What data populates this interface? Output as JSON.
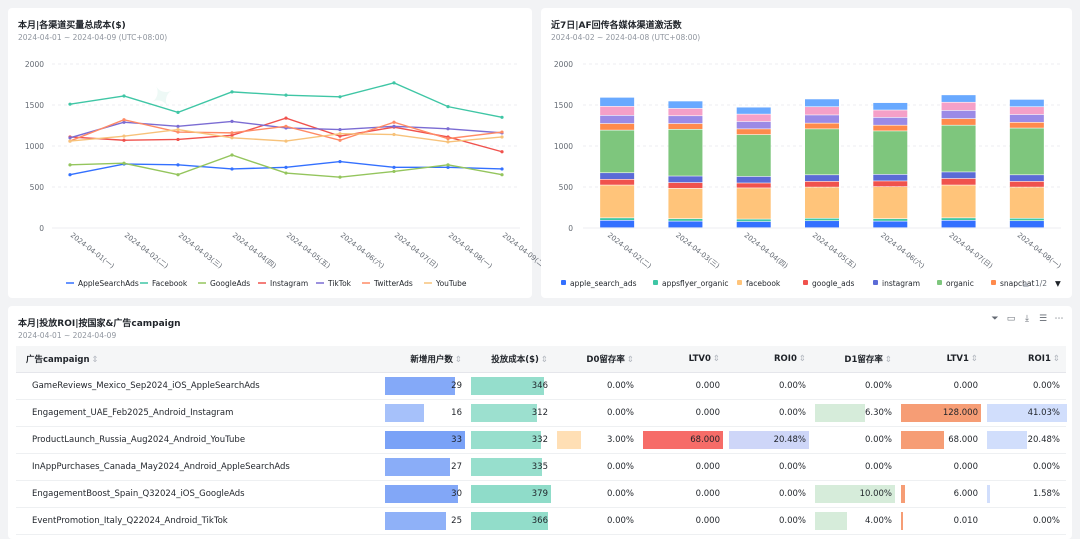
{
  "line_card": {
    "title": "本月|各渠道买量总成本($)",
    "subtitle": "2024-04-01 ~ 2024-04-09 (UTC+08:00)"
  },
  "bar_card": {
    "title": "近7日|AF回传各媒体渠道激活数",
    "subtitle": "2024-04-02 ~ 2024-04-08 (UTC+08:00)",
    "legend_page": "1/2"
  },
  "table_card": {
    "title": "本月|投放ROI|按国家&广告campaign",
    "subtitle": "2024-04-01 ~ 2024-04-09"
  },
  "chart_data": [
    {
      "type": "line",
      "title": "本月|各渠道买量总成本($)",
      "categories": [
        "2024-04-01(一)",
        "2024-04-02(二)",
        "2024-04-03(三)",
        "2024-04-04(四)",
        "2024-04-05(五)",
        "2024-04-06(六)",
        "2024-04-07(日)",
        "2024-04-08(一)",
        "2024-04-09(二)"
      ],
      "ylim": [
        0,
        2000
      ],
      "yticks": [
        0,
        500,
        1000,
        1500,
        2000
      ],
      "series": [
        {
          "name": "AppleSearchAds",
          "color": "#3370ff",
          "values": [
            650,
            780,
            770,
            720,
            740,
            810,
            740,
            740,
            720
          ]
        },
        {
          "name": "Facebook",
          "color": "#3fc6a5",
          "values": [
            1510,
            1610,
            1410,
            1660,
            1620,
            1600,
            1770,
            1480,
            1350
          ]
        },
        {
          "name": "GoogleAds",
          "color": "#94c55d",
          "values": [
            770,
            790,
            650,
            890,
            670,
            620,
            690,
            770,
            650
          ]
        },
        {
          "name": "Instagram",
          "color": "#f0524d",
          "values": [
            1110,
            1070,
            1080,
            1130,
            1340,
            1120,
            1230,
            1110,
            930
          ]
        },
        {
          "name": "TikTok",
          "color": "#7b6cd3",
          "values": [
            1100,
            1290,
            1240,
            1300,
            1220,
            1200,
            1240,
            1210,
            1160
          ]
        },
        {
          "name": "TwitterAds",
          "color": "#ff8a65",
          "values": [
            1060,
            1320,
            1170,
            1160,
            1240,
            1070,
            1290,
            1090,
            1170
          ]
        },
        {
          "name": "YouTube",
          "color": "#f7c27a",
          "values": [
            1060,
            1120,
            1200,
            1100,
            1060,
            1150,
            1140,
            1050,
            1110
          ]
        }
      ]
    },
    {
      "type": "bar",
      "stacked": true,
      "title": "近7日|AF回传各媒体渠道激活数",
      "categories": [
        "2024-04-02(二)",
        "2024-04-03(三)",
        "2024-04-04(四)",
        "2024-04-05(五)",
        "2024-04-06(六)",
        "2024-04-07(日)",
        "2024-04-08(一)"
      ],
      "ylim": [
        0,
        2000
      ],
      "yticks": [
        0,
        500,
        1000,
        1500,
        2000
      ],
      "series": [
        {
          "name": "apple_search_ads",
          "color": "#3370ff",
          "values": [
            90,
            80,
            75,
            85,
            80,
            90,
            85
          ]
        },
        {
          "name": "appsflyer_organic",
          "color": "#3fc6a5",
          "values": [
            30,
            30,
            30,
            30,
            30,
            30,
            30
          ]
        },
        {
          "name": "facebook",
          "color": "#ffc47a",
          "values": [
            400,
            370,
            380,
            380,
            390,
            400,
            380
          ]
        },
        {
          "name": "google_ads",
          "color": "#f0524d",
          "values": [
            70,
            70,
            60,
            70,
            70,
            80,
            70
          ]
        },
        {
          "name": "instagram",
          "color": "#5b6bd6",
          "values": [
            80,
            80,
            80,
            80,
            80,
            80,
            80
          ]
        },
        {
          "name": "organic",
          "color": "#7ec67d",
          "values": [
            520,
            570,
            510,
            560,
            530,
            570,
            570
          ]
        },
        {
          "name": "snapchat",
          "color": "#ff8a4c",
          "values": [
            80,
            70,
            70,
            70,
            70,
            80,
            70
          ]
        },
        {
          "name": "tiktok",
          "color": "#9b8ae6",
          "values": [
            100,
            95,
            90,
            100,
            95,
            100,
            95
          ]
        },
        {
          "name": "twitter",
          "color": "#f5a0c8",
          "values": [
            110,
            90,
            90,
            100,
            90,
            100,
            95
          ]
        },
        {
          "name": "youtube",
          "color": "#69a9ff",
          "values": [
            110,
            90,
            85,
            95,
            90,
            90,
            90
          ]
        }
      ],
      "legend_visible": [
        "apple_search_ads",
        "appsflyer_organic",
        "facebook",
        "google_ads",
        "instagram",
        "organic",
        "snapchat"
      ]
    },
    {
      "type": "table",
      "title": "本月|投放ROI|按国家&广告campaign",
      "columns": [
        {
          "key": "campaign",
          "label": "广告campaign"
        },
        {
          "key": "new_users",
          "label": "新增用户数",
          "max": 33,
          "color": "#7aa2f7"
        },
        {
          "key": "cost",
          "label": "投放成本($)",
          "max": 379,
          "color": "#8fdcc9"
        },
        {
          "key": "d0",
          "label": "D0留存率",
          "max": 10,
          "color": "#ffd9a8"
        },
        {
          "key": "ltv0",
          "label": "LTV0",
          "max": 68,
          "color": "#f4524d"
        },
        {
          "key": "roi0",
          "label": "ROI0",
          "max": 20.48,
          "color": "#c6cff7"
        },
        {
          "key": "d1",
          "label": "D1留存率",
          "max": 10,
          "color": "#cfe9d4"
        },
        {
          "key": "ltv1",
          "label": "LTV1",
          "max": 128,
          "color": "#f58c5d"
        },
        {
          "key": "roi1",
          "label": "ROI1",
          "max": 41.03,
          "color": "#c9d8fb"
        }
      ],
      "rows": [
        {
          "campaign": "GameReviews_Mexico_Sep2024_iOS_AppleSearchAds",
          "new_users": "29",
          "cost": "346",
          "d0": "0.00%",
          "ltv0": "0.000",
          "roi0": "0.00%",
          "d1": "0.00%",
          "ltv1": "0.000",
          "roi1": "0.00%",
          "n": {
            "new_users": 29,
            "cost": 346,
            "d0": 0,
            "ltv0": 0,
            "roi0": 0,
            "d1": 0,
            "ltv1": 0,
            "roi1": 0
          }
        },
        {
          "campaign": "Engagement_UAE_Feb2025_Android_Instagram",
          "new_users": "16",
          "cost": "312",
          "d0": "0.00%",
          "ltv0": "0.000",
          "roi0": "0.00%",
          "d1": "6.30%",
          "ltv1": "128.000",
          "roi1": "41.03%",
          "n": {
            "new_users": 16,
            "cost": 312,
            "d0": 0,
            "ltv0": 0,
            "roi0": 0,
            "d1": 6.3,
            "ltv1": 128,
            "roi1": 41.03
          }
        },
        {
          "campaign": "ProductLaunch_Russia_Aug2024_Android_YouTube",
          "new_users": "33",
          "cost": "332",
          "d0": "3.00%",
          "ltv0": "68.000",
          "roi0": "20.48%",
          "d1": "0.00%",
          "ltv1": "68.000",
          "roi1": "20.48%",
          "n": {
            "new_users": 33,
            "cost": 332,
            "d0": 3,
            "ltv0": 68,
            "roi0": 20.48,
            "d1": 0,
            "ltv1": 68,
            "roi1": 20.48
          }
        },
        {
          "campaign": "InAppPurchases_Canada_May2024_Android_AppleSearchAds",
          "new_users": "27",
          "cost": "335",
          "d0": "0.00%",
          "ltv0": "0.000",
          "roi0": "0.00%",
          "d1": "0.00%",
          "ltv1": "0.000",
          "roi1": "0.00%",
          "n": {
            "new_users": 27,
            "cost": 335,
            "d0": 0,
            "ltv0": 0,
            "roi0": 0,
            "d1": 0,
            "ltv1": 0,
            "roi1": 0
          }
        },
        {
          "campaign": "EngagementBoost_Spain_Q32024_iOS_GoogleAds",
          "new_users": "30",
          "cost": "379",
          "d0": "0.00%",
          "ltv0": "0.000",
          "roi0": "0.00%",
          "d1": "10.00%",
          "ltv1": "6.000",
          "roi1": "1.58%",
          "n": {
            "new_users": 30,
            "cost": 379,
            "d0": 0,
            "ltv0": 0,
            "roi0": 0,
            "d1": 10,
            "ltv1": 6,
            "roi1": 1.58
          }
        },
        {
          "campaign": "EventPromotion_Italy_Q22024_Android_TikTok",
          "new_users": "25",
          "cost": "366",
          "d0": "0.00%",
          "ltv0": "0.000",
          "roi0": "0.00%",
          "d1": "4.00%",
          "ltv1": "0.010",
          "roi1": "0.00%",
          "n": {
            "new_users": 25,
            "cost": 366,
            "d0": 0,
            "ltv0": 0,
            "roi0": 0,
            "d1": 4,
            "ltv1": 0.01,
            "roi1": 0
          }
        }
      ]
    }
  ]
}
